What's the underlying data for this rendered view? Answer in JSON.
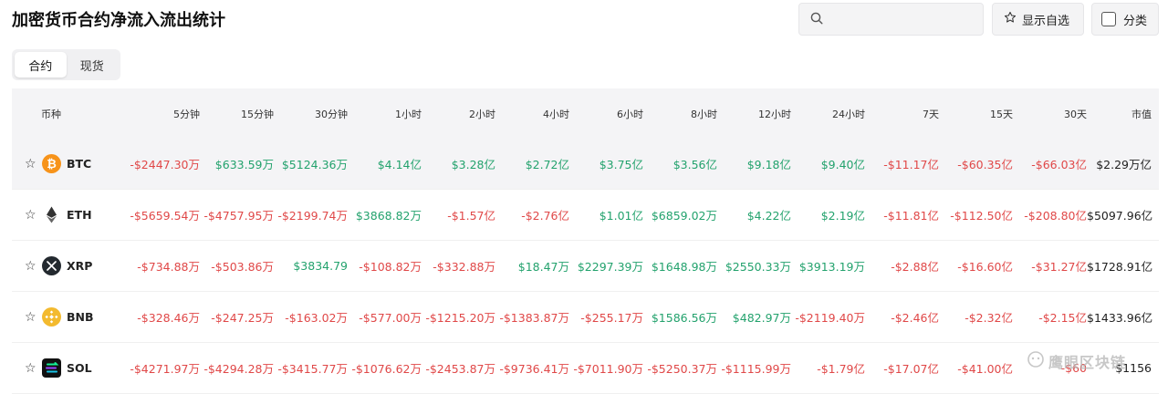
{
  "title": "加密货币合约净流入流出统计",
  "search": {
    "placeholder": ""
  },
  "buttons": {
    "favorites": "显示自选",
    "category": "分类"
  },
  "tabs": [
    {
      "label": "合约",
      "active": true
    },
    {
      "label": "现货",
      "active": false
    }
  ],
  "columns": [
    "币种",
    "5分钟",
    "15分钟",
    "30分钟",
    "1小时",
    "2小时",
    "4小时",
    "6小时",
    "8小时",
    "12小时",
    "24小时",
    "7天",
    "15天",
    "30天",
    "市值"
  ],
  "rows": [
    {
      "symbol": "BTC",
      "icon": "bitcoin-icon",
      "values": [
        "-$2447.30万",
        "$633.59万",
        "$5124.36万",
        "$4.14亿",
        "$3.28亿",
        "$2.72亿",
        "$3.75亿",
        "$3.56亿",
        "$9.18亿",
        "$9.40亿",
        "-$11.17亿",
        "-$60.35亿",
        "-$66.03亿"
      ],
      "market_cap": "$2.29万亿"
    },
    {
      "symbol": "ETH",
      "icon": "ethereum-icon",
      "values": [
        "-$5659.54万",
        "-$4757.95万",
        "-$2199.74万",
        "$3868.82万",
        "-$1.57亿",
        "-$2.76亿",
        "$1.01亿",
        "$6859.02万",
        "$4.22亿",
        "$2.19亿",
        "-$11.81亿",
        "-$112.50亿",
        "-$208.80亿"
      ],
      "market_cap": "$5097.96亿"
    },
    {
      "symbol": "XRP",
      "icon": "xrp-icon",
      "values": [
        "-$734.88万",
        "-$503.86万",
        "$3834.79",
        "-$108.82万",
        "-$332.88万",
        "$18.47万",
        "$2297.39万",
        "$1648.98万",
        "$2550.33万",
        "$3913.19万",
        "-$2.88亿",
        "-$16.60亿",
        "-$31.27亿"
      ],
      "market_cap": "$1728.91亿"
    },
    {
      "symbol": "BNB",
      "icon": "bnb-icon",
      "values": [
        "-$328.46万",
        "-$247.25万",
        "-$163.02万",
        "-$577.00万",
        "-$1215.20万",
        "-$1383.87万",
        "-$255.17万",
        "$1586.56万",
        "$482.97万",
        "-$2119.40万",
        "-$2.46亿",
        "-$2.32亿",
        "-$2.15亿"
      ],
      "market_cap": "$1433.96亿"
    },
    {
      "symbol": "SOL",
      "icon": "solana-icon",
      "values": [
        "-$4271.97万",
        "-$4294.28万",
        "-$3415.77万",
        "-$1076.62万",
        "-$2453.87万",
        "-$9736.41万",
        "-$7011.90万",
        "-$5250.37万",
        "-$1115.99万",
        "-$1.79亿",
        "-$17.07亿",
        "-$41.00亿",
        "-$60"
      ],
      "market_cap": "$1156"
    }
  ],
  "watermark": "鹰眼区块链",
  "colors": {
    "up": "#23a26d",
    "down": "#e04848",
    "btc": "#f7931a",
    "bnb": "#f3ba2f"
  }
}
